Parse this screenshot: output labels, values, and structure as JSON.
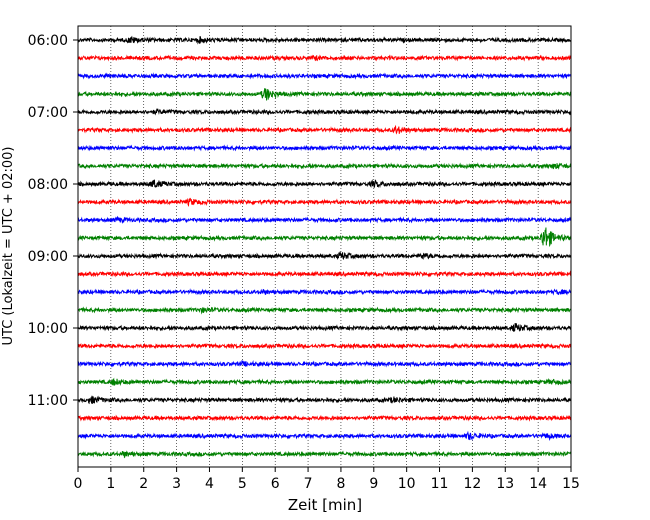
{
  "chart_data": {
    "type": "line",
    "title": "",
    "xlabel": "Zeit  [min]",
    "ylabel": "UTC (Lokalzeit = UTC + 02:00)",
    "xlim": [
      0,
      15
    ],
    "x_ticks": [
      "0",
      "1",
      "2",
      "3",
      "4",
      "5",
      "6",
      "7",
      "8",
      "9",
      "10",
      "11",
      "12",
      "13",
      "14",
      "15"
    ],
    "y_tick_labels": [
      "06:00",
      "07:00",
      "08:00",
      "09:00",
      "10:00",
      "11:00"
    ],
    "grid": "vertical dotted lines at each minute",
    "legend": "none",
    "trace_interval_minutes": 15,
    "color_cycle": [
      "#000000",
      "#ff0000",
      "#0000ff",
      "#008000"
    ],
    "series": [
      {
        "start": "06:00",
        "color": "#000000",
        "events": [
          {
            "x": 1.6,
            "amp": 2.5
          },
          {
            "x": 3.7,
            "amp": 2
          }
        ]
      },
      {
        "start": "06:15",
        "color": "#ff0000",
        "events": [
          {
            "x": 7.2,
            "amp": 1.5
          }
        ]
      },
      {
        "start": "06:30",
        "color": "#0000ff",
        "events": []
      },
      {
        "start": "06:45",
        "color": "#008000",
        "events": [
          {
            "x": 5.7,
            "amp": 6
          }
        ]
      },
      {
        "start": "07:00",
        "color": "#000000",
        "events": [
          {
            "x": 2.4,
            "amp": 1.5
          }
        ]
      },
      {
        "start": "07:15",
        "color": "#ff0000",
        "events": [
          {
            "x": 9.7,
            "amp": 3
          }
        ]
      },
      {
        "start": "07:30",
        "color": "#0000ff",
        "events": []
      },
      {
        "start": "07:45",
        "color": "#008000",
        "events": [
          {
            "x": 14.5,
            "amp": 2
          }
        ]
      },
      {
        "start": "08:00",
        "color": "#000000",
        "events": [
          {
            "x": 2.3,
            "amp": 3.5
          },
          {
            "x": 9.0,
            "amp": 2.5
          }
        ]
      },
      {
        "start": "08:15",
        "color": "#ff0000",
        "events": [
          {
            "x": 3.4,
            "amp": 2.5
          }
        ]
      },
      {
        "start": "08:30",
        "color": "#0000ff",
        "events": [
          {
            "x": 1.2,
            "amp": 1.5
          }
        ]
      },
      {
        "start": "08:45",
        "color": "#008000",
        "events": [
          {
            "x": 14.2,
            "amp": 12
          }
        ]
      },
      {
        "start": "09:00",
        "color": "#000000",
        "events": [
          {
            "x": 8.0,
            "amp": 3
          },
          {
            "x": 10.5,
            "amp": 2
          }
        ]
      },
      {
        "start": "09:15",
        "color": "#ff0000",
        "events": []
      },
      {
        "start": "09:30",
        "color": "#0000ff",
        "events": [
          {
            "x": 5.6,
            "amp": 1.5
          },
          {
            "x": 14.6,
            "amp": 1.5
          }
        ]
      },
      {
        "start": "09:45",
        "color": "#008000",
        "events": [
          {
            "x": 3.8,
            "amp": 1.5
          }
        ]
      },
      {
        "start": "10:00",
        "color": "#000000",
        "events": [
          {
            "x": 13.3,
            "amp": 3.5
          }
        ]
      },
      {
        "start": "10:15",
        "color": "#ff0000",
        "events": []
      },
      {
        "start": "10:30",
        "color": "#0000ff",
        "events": [
          {
            "x": 5.0,
            "amp": 1.5
          }
        ]
      },
      {
        "start": "10:45",
        "color": "#008000",
        "events": [
          {
            "x": 1.1,
            "amp": 2.5
          },
          {
            "x": 14.4,
            "amp": 1.5
          }
        ]
      },
      {
        "start": "11:00",
        "color": "#000000",
        "events": [
          {
            "x": 0.4,
            "amp": 3
          },
          {
            "x": 9.6,
            "amp": 2
          }
        ]
      },
      {
        "start": "11:15",
        "color": "#ff0000",
        "events": []
      },
      {
        "start": "11:30",
        "color": "#0000ff",
        "events": [
          {
            "x": 11.9,
            "amp": 3
          },
          {
            "x": 14.3,
            "amp": 2
          }
        ]
      },
      {
        "start": "11:45",
        "color": "#008000",
        "events": [
          {
            "x": 1.4,
            "amp": 2
          }
        ]
      }
    ]
  }
}
